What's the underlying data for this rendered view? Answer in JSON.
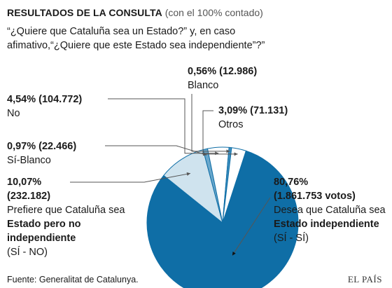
{
  "header": {
    "title": "RESULTADOS DE LA CONSULTA",
    "subtitle": "(con el 100% contado)",
    "question": "“¿Quiere que Cataluña sea un Estado?” y, en caso afimativo,“¿Quiere que este Estado sea independiente”?”"
  },
  "chart_data": {
    "type": "pie",
    "slices": [
      {
        "key": "si_si",
        "value": 80.76,
        "value_label": "80,76%",
        "count_label": "(1.861.753 votos)",
        "text_pre": "Desea que Cataluña sea ",
        "text_bold": "Estado independiente",
        "text_post": "(SÍ - SÍ)",
        "color": "#0f6ea6"
      },
      {
        "key": "si_no",
        "value": 10.07,
        "value_label": "10,07%",
        "count_label": "(232.182)",
        "text_pre": "Prefiere que Cataluña sea ",
        "text_bold": "Estado pero no independiente",
        "text_post": "(SÍ - NO)",
        "color": "#cfe3ee"
      },
      {
        "key": "si_blanco",
        "value": 0.97,
        "value_label": "0,97% (22.466)",
        "text_pre": "Sí-Blanco",
        "color": "#6aa8cc"
      },
      {
        "key": "no",
        "value": 4.54,
        "value_label": "4,54% (104.772)",
        "text_pre": "No",
        "color": "#ffffff"
      },
      {
        "key": "blanco",
        "value": 0.56,
        "value_label": "0,56% (12.986)",
        "text_pre": "Blanco",
        "color": "#3d8fbf"
      },
      {
        "key": "otros",
        "value": 3.09,
        "value_label": "3,09% (71.131)",
        "text_pre": "Otros",
        "color": "#ffffff"
      }
    ],
    "stroke_color": "#0f6ea6",
    "leader_color": "#555555"
  },
  "footer": {
    "source": "Fuente: Generalitat de Catalunya.",
    "brand": "EL PAÍS"
  }
}
